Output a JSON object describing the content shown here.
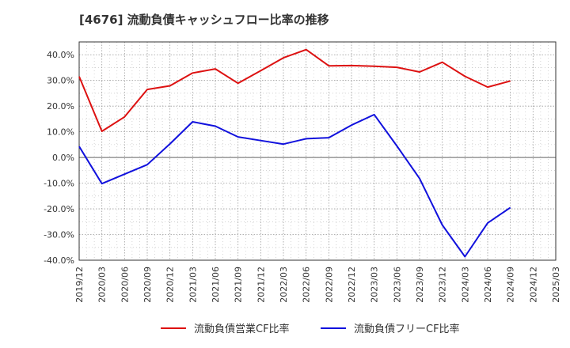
{
  "chart_data": {
    "type": "line",
    "title": "[4676]  流動負債キャッシュフロー比率の推移",
    "xlabel": "",
    "ylabel": "",
    "ylim": [
      -40,
      45
    ],
    "yticks": [
      -40,
      -30,
      -20,
      -10,
      0,
      10,
      20,
      30,
      40
    ],
    "ytick_labels": [
      "-40.0%",
      "-30.0%",
      "-20.0%",
      "-10.0%",
      "0.0%",
      "10.0%",
      "20.0%",
      "30.0%",
      "40.0%"
    ],
    "categories": [
      "2019/12",
      "2020/03",
      "2020/06",
      "2020/09",
      "2020/12",
      "2021/03",
      "2021/06",
      "2021/09",
      "2021/12",
      "2022/03",
      "2022/06",
      "2022/09",
      "2022/12",
      "2023/03",
      "2023/06",
      "2023/09",
      "2023/12",
      "2024/03",
      "2024/06",
      "2024/09",
      "2024/12",
      "2025/03"
    ],
    "grid": true,
    "legend_position": "bottom",
    "series": [
      {
        "name": "流動負債営業CF比率",
        "color": "#dd1111",
        "values": [
          31.5,
          10.2,
          15.8,
          26.5,
          27.9,
          32.9,
          34.5,
          28.9,
          33.8,
          38.8,
          42.0,
          35.7,
          35.8,
          35.5,
          35.1,
          33.3,
          37.1,
          31.6,
          27.4,
          29.8,
          null,
          null
        ]
      },
      {
        "name": "流動負債フリーCF比率",
        "color": "#1111dd",
        "values": [
          4.3,
          -10.2,
          -6.5,
          -2.8,
          5.3,
          13.9,
          12.2,
          8.0,
          6.6,
          5.2,
          7.3,
          7.7,
          12.6,
          16.7,
          4.5,
          -8.2,
          -26.3,
          -38.6,
          -25.5,
          -19.5,
          null,
          null
        ]
      }
    ]
  }
}
